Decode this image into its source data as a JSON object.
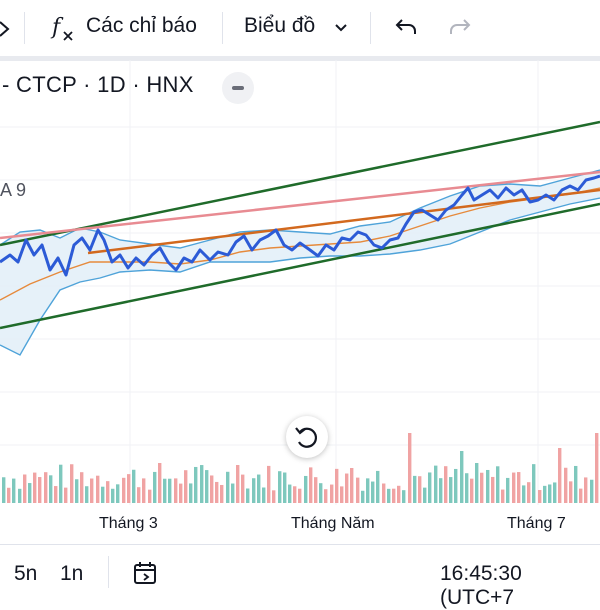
{
  "toolbar": {
    "indicators_label": "Các chỉ báo",
    "chart_type_label": "Biểu đồ"
  },
  "symbol_line": "- CTCP · 1D · HNX",
  "ma_label": "A 9",
  "x_axis_labels": [
    "Tháng 3",
    "Tháng Năm",
    "Tháng 7"
  ],
  "bottom_bar": {
    "range_5n": "5n",
    "range_1n": "1n",
    "clock": "16:45:30 (UTC+7"
  },
  "icons": [
    "chevron-icon",
    "fx-icon",
    "dropdown-chevron-icon",
    "undo-icon",
    "redo-icon",
    "minus-icon",
    "reset-icon",
    "calendar-icon"
  ],
  "colors": {
    "price_line": "#2c5bd6",
    "bollinger": "#4fa3d9",
    "bollinger_fill": "#e3f0f8",
    "ma_orange": "#e68a3c",
    "channel": "#1f6b2a",
    "trend_pink": "#e88b92",
    "trend_orange": "#d2691e",
    "volume_up": "#7ec8bd",
    "volume_down": "#f0a3a3"
  }
}
